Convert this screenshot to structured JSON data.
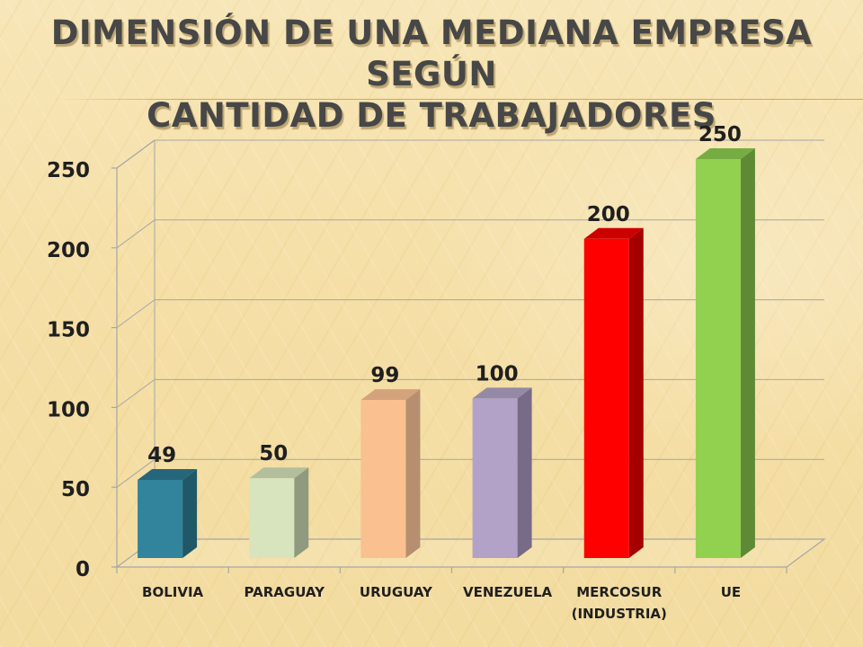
{
  "title_line1": "DIMENSIÓN DE UNA MEDIANA EMPRESA SEGÚN",
  "title_line2": "CANTIDAD DE TRABAJADORES",
  "chart_data": {
    "type": "bar",
    "categories": [
      [
        "BOLIVIA"
      ],
      [
        "PARAGUAY"
      ],
      [
        "URUGUAY"
      ],
      [
        "VENEZUELA"
      ],
      [
        "MERCOSUR",
        "(INDUSTRIA)"
      ],
      [
        "UE"
      ]
    ],
    "values": [
      49,
      50,
      99,
      100,
      200,
      250
    ],
    "data_labels": [
      "49",
      "50",
      "99",
      "100",
      "200",
      "250"
    ],
    "yticks": [
      0,
      50,
      100,
      150,
      200,
      250
    ],
    "ylim": [
      0,
      250
    ],
    "xlabel": "",
    "ylabel": "",
    "grid": true,
    "legend": "none",
    "bar_colors": [
      {
        "front": "#31849b",
        "side": "#215868",
        "top": "#25667a"
      },
      {
        "front": "#d7e4bd",
        "side": "#8f9a7e",
        "top": "#b3bf9c"
      },
      {
        "front": "#fac090",
        "side": "#b58f6f",
        "top": "#d4a27b"
      },
      {
        "front": "#b3a2c7",
        "side": "#776b87",
        "top": "#958aa6"
      },
      {
        "front": "#ff0000",
        "side": "#a50000",
        "top": "#cc0000"
      },
      {
        "front": "#92d050",
        "side": "#5f8a35",
        "top": "#77ac42"
      }
    ]
  }
}
